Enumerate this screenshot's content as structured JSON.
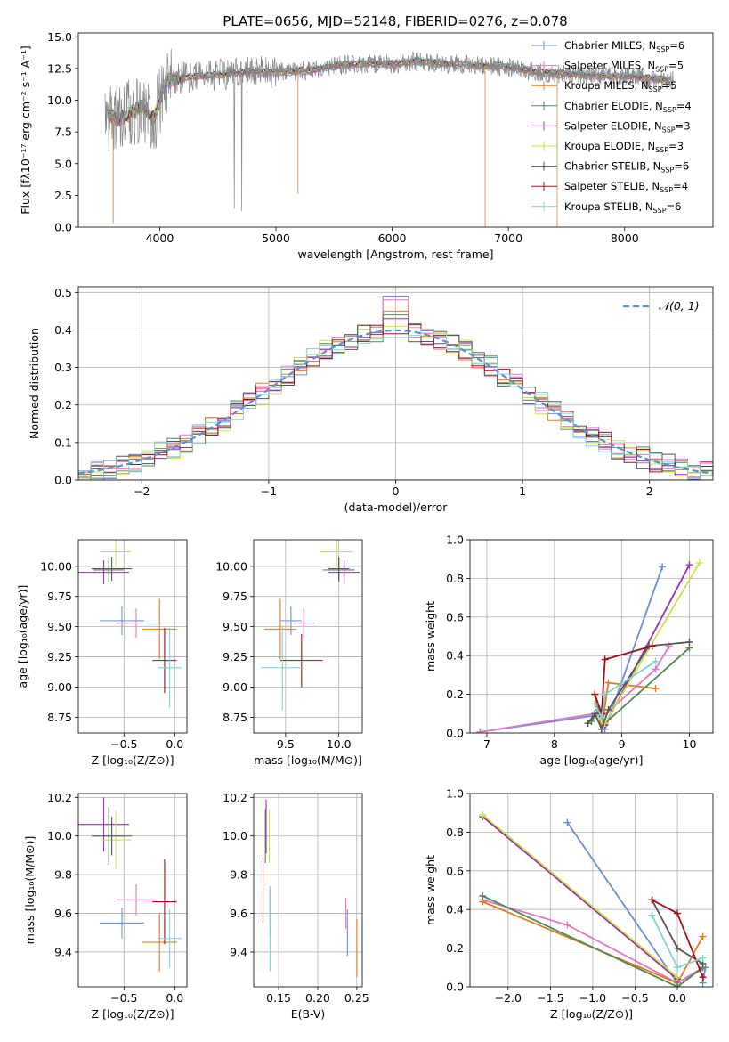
{
  "figure_title": "PLATE=0656, MJD=52148, FIBERID=0276, z=0.078",
  "series_legend": [
    {
      "label": "Chabrier MILES, N",
      "sub": "SSP",
      "suffix": "=6",
      "color": "#6a8fd8"
    },
    {
      "label": "Salpeter MILES, N",
      "sub": "SSP",
      "suffix": "=5",
      "color": "#e377c2"
    },
    {
      "label": "Kroupa MILES, N",
      "sub": "SSP",
      "suffix": "=5",
      "color": "#e07b20"
    },
    {
      "label": "Chabrier ELODIE, N",
      "sub": "SSP",
      "suffix": "=4",
      "color": "#4f8a52"
    },
    {
      "label": "Salpeter ELODIE, N",
      "sub": "SSP",
      "suffix": "=3",
      "color": "#9b2fae"
    },
    {
      "label": "Kroupa ELODIE, N",
      "sub": "SSP",
      "suffix": "=3",
      "color": "#c9e44a"
    },
    {
      "label": "Chabrier STELIB, N",
      "sub": "SSP",
      "suffix": "=6",
      "color": "#555555"
    },
    {
      "label": "Salpeter STELIB, N",
      "sub": "SSP",
      "suffix": "=4",
      "color": "#a0101a"
    },
    {
      "label": "Kroupa STELIB, N",
      "sub": "SSP",
      "suffix": "=6",
      "color": "#7fd3d6"
    }
  ],
  "chart_data": [
    {
      "id": "spectrum",
      "type": "line",
      "xlabel": "wavelength [Angstrom, rest frame]",
      "ylabel": "Flux [fλ10⁻¹⁷ erg cm⁻² s⁻¹ A⁻¹]",
      "xlim": [
        3300,
        8760
      ],
      "ylim": [
        0,
        15.3
      ],
      "xticks": [
        4000,
        5000,
        6000,
        7000,
        8000
      ],
      "yticks": [
        0.0,
        2.5,
        5.0,
        7.5,
        10.0,
        12.5,
        15.0
      ],
      "data_color": "#888888",
      "continuum_x": [
        3550,
        3650,
        3750,
        3850,
        3950,
        4050,
        4200,
        4400,
        4600,
        4800,
        5000,
        5200,
        5400,
        5600,
        5800,
        6000,
        6200,
        6400,
        6600,
        6800,
        7000,
        7200,
        7400,
        7600,
        7800,
        8000,
        8200,
        8400
      ],
      "continuum_y": [
        8.8,
        8.5,
        9.0,
        9.6,
        8.5,
        11.5,
        11.8,
        11.9,
        12.1,
        12.3,
        12.2,
        12.3,
        12.5,
        12.8,
        12.9,
        12.8,
        13.1,
        12.9,
        12.8,
        12.7,
        12.6,
        12.3,
        12.1,
        12.0,
        11.9,
        11.9,
        11.7,
        11.6
      ]
    },
    {
      "id": "residuals",
      "type": "histogram",
      "xlabel": "(data-model)/error",
      "ylabel": "Normed distribution",
      "xlim": [
        -2.5,
        2.5
      ],
      "ylim": [
        0,
        0.515
      ],
      "xticks": [
        -2,
        -1,
        0,
        1,
        2
      ],
      "yticks": [
        0.0,
        0.1,
        0.2,
        0.3,
        0.4,
        0.5
      ],
      "bin_width": 0.1,
      "normal_label": "𝒩(0, 1)",
      "normal_color": "#5b8fd8",
      "peak_values": [
        0.49,
        0.48,
        0.45,
        0.44,
        0.43,
        0.41,
        0.4,
        0.39,
        0.38
      ]
    },
    {
      "id": "z-age",
      "type": "scatter-errorbar",
      "xlabel": "Z [log₁₀(Z/Z⊙)]",
      "ylabel": "age  [log₁₀(age/yr)]",
      "xlim": [
        -0.95,
        0.12
      ],
      "ylim": [
        8.62,
        10.22
      ],
      "xticks": [
        -0.5,
        0.0
      ],
      "yticks": [
        8.75,
        9.0,
        9.25,
        9.5,
        9.75,
        10.0
      ],
      "points": [
        {
          "x": -0.52,
          "y": 9.55,
          "xerr": 0.22,
          "yerr": 0.12
        },
        {
          "x": -0.38,
          "y": 9.53,
          "xerr": 0.2,
          "yerr": 0.12
        },
        {
          "x": -0.15,
          "y": 9.48,
          "xerr": 0.17,
          "yerr": 0.25
        },
        {
          "x": -0.65,
          "y": 9.97,
          "xerr": 0.15,
          "yerr": 0.1
        },
        {
          "x": -0.7,
          "y": 9.95,
          "xerr": 0.25,
          "yerr": 0.1
        },
        {
          "x": -0.58,
          "y": 10.12,
          "xerr": 0.15,
          "yerr": 0.12
        },
        {
          "x": -0.62,
          "y": 9.98,
          "xerr": 0.2,
          "yerr": 0.1
        },
        {
          "x": -0.1,
          "y": 9.22,
          "xerr": 0.12,
          "yerr": 0.27
        },
        {
          "x": -0.05,
          "y": 9.16,
          "xerr": 0.12,
          "yerr": 0.33
        }
      ]
    },
    {
      "id": "mass-age",
      "type": "scatter-errorbar",
      "xlabel": "mass [log₁₀(M/M⊙)]",
      "ylabel": "",
      "xlim": [
        9.2,
        10.22
      ],
      "ylim": [
        8.62,
        10.22
      ],
      "xticks": [
        9.5,
        10.0
      ],
      "yticks": [
        8.75,
        9.0,
        9.25,
        9.5,
        9.75,
        10.0
      ],
      "points": [
        {
          "x": 9.55,
          "y": 9.55,
          "xerr": 0.1,
          "yerr": 0.12
        },
        {
          "x": 9.67,
          "y": 9.53,
          "xerr": 0.1,
          "yerr": 0.12
        },
        {
          "x": 9.45,
          "y": 9.48,
          "xerr": 0.15,
          "yerr": 0.25
        },
        {
          "x": 10.0,
          "y": 9.97,
          "xerr": 0.15,
          "yerr": 0.1
        },
        {
          "x": 10.05,
          "y": 9.95,
          "xerr": 0.15,
          "yerr": 0.1
        },
        {
          "x": 9.98,
          "y": 10.12,
          "xerr": 0.15,
          "yerr": 0.12
        },
        {
          "x": 10.0,
          "y": 9.98,
          "xerr": 0.1,
          "yerr": 0.1
        },
        {
          "x": 9.65,
          "y": 9.22,
          "xerr": 0.2,
          "yerr": 0.22
        },
        {
          "x": 9.47,
          "y": 9.16,
          "xerr": 0.2,
          "yerr": 0.35
        }
      ]
    },
    {
      "id": "age-weight",
      "type": "line",
      "xlabel": "age  [log₁₀(age/yr)]",
      "ylabel": "mass weight",
      "xlim": [
        6.75,
        10.35
      ],
      "ylim": [
        0,
        1.0
      ],
      "xticks": [
        7,
        8,
        9,
        10
      ],
      "yticks": [
        0.0,
        0.2,
        0.4,
        0.6,
        0.8,
        1.0
      ],
      "series": [
        {
          "x": [
            6.9,
            8.6,
            8.7,
            8.75,
            9.6
          ],
          "y": [
            0.005,
            0.09,
            0.12,
            0.02,
            0.86
          ]
        },
        {
          "x": [
            6.9,
            8.6,
            8.7,
            9.5,
            9.7
          ],
          "y": [
            0.005,
            0.1,
            0.08,
            0.33,
            0.45
          ]
        },
        {
          "x": [
            8.6,
            8.7,
            8.8,
            9.5
          ],
          "y": [
            0.2,
            0.02,
            0.26,
            0.23
          ]
        },
        {
          "x": [
            8.55,
            8.65,
            8.75,
            10.0
          ],
          "y": [
            0.06,
            0.12,
            0.05,
            0.44
          ]
        },
        {
          "x": [
            8.65,
            8.75,
            10.0
          ],
          "y": [
            0.1,
            0.04,
            0.87
          ]
        },
        {
          "x": [
            8.65,
            8.75,
            10.15
          ],
          "y": [
            0.08,
            0.05,
            0.88
          ]
        },
        {
          "x": [
            8.5,
            8.6,
            8.7,
            8.8,
            9.4,
            10.0
          ],
          "y": [
            0.05,
            0.1,
            0.02,
            0.12,
            0.45,
            0.47
          ]
        },
        {
          "x": [
            8.6,
            8.7,
            8.75,
            9.45
          ],
          "y": [
            0.2,
            0.1,
            0.38,
            0.45
          ]
        },
        {
          "x": [
            8.6,
            8.7,
            8.75,
            9.5
          ],
          "y": [
            0.15,
            0.08,
            0.2,
            0.37
          ]
        }
      ]
    },
    {
      "id": "z-mass",
      "type": "scatter-errorbar",
      "xlabel": "Z [log₁₀(Z/Z⊙)]",
      "ylabel": "mass [log₁₀(M/M⊙)]",
      "xlim": [
        -0.95,
        0.12
      ],
      "ylim": [
        9.22,
        10.22
      ],
      "xticks": [
        -0.5,
        0.0
      ],
      "yticks": [
        9.4,
        9.6,
        9.8,
        10.0,
        10.2
      ],
      "points": [
        {
          "x": -0.52,
          "y": 9.55,
          "xerr": 0.22,
          "yerr": 0.08
        },
        {
          "x": -0.38,
          "y": 9.67,
          "xerr": 0.2,
          "yerr": 0.08
        },
        {
          "x": -0.15,
          "y": 9.45,
          "xerr": 0.17,
          "yerr": 0.15
        },
        {
          "x": -0.65,
          "y": 10.0,
          "xerr": 0.15,
          "yerr": 0.15
        },
        {
          "x": -0.7,
          "y": 10.06,
          "xerr": 0.25,
          "yerr": 0.14
        },
        {
          "x": -0.58,
          "y": 9.98,
          "xerr": 0.15,
          "yerr": 0.15
        },
        {
          "x": -0.62,
          "y": 10.0,
          "xerr": 0.2,
          "yerr": 0.1
        },
        {
          "x": -0.1,
          "y": 9.66,
          "xerr": 0.12,
          "yerr": 0.22
        },
        {
          "x": -0.05,
          "y": 9.47,
          "xerr": 0.12,
          "yerr": 0.15
        }
      ]
    },
    {
      "id": "ebv-mass",
      "type": "scatter-errorbar",
      "xlabel": "E(B-V)",
      "ylabel": "",
      "xlim": [
        0.118,
        0.257
      ],
      "ylim": [
        9.22,
        10.22
      ],
      "xticks": [
        0.15,
        0.2,
        0.25
      ],
      "yticks": [
        9.4,
        9.6,
        9.8,
        10.0,
        10.2
      ],
      "points": [
        {
          "x": 0.238,
          "y": 9.5,
          "xerr": 0.0,
          "yerr": 0.12
        },
        {
          "x": 0.236,
          "y": 9.6,
          "xerr": 0.0,
          "yerr": 0.08
        },
        {
          "x": 0.25,
          "y": 9.42,
          "xerr": 0.0,
          "yerr": 0.15
        },
        {
          "x": 0.133,
          "y": 10.0,
          "xerr": 0.0,
          "yerr": 0.14
        },
        {
          "x": 0.134,
          "y": 10.05,
          "xerr": 0.0,
          "yerr": 0.14
        },
        {
          "x": 0.138,
          "y": 10.0,
          "xerr": 0.0,
          "yerr": 0.14
        },
        {
          "x": 0.139,
          "y": 9.6,
          "xerr": 0.0,
          "yerr": 0.12
        },
        {
          "x": 0.13,
          "y": 9.72,
          "xerr": 0.0,
          "yerr": 0.17
        },
        {
          "x": 0.139,
          "y": 9.52,
          "xerr": 0.0,
          "yerr": 0.22
        }
      ]
    },
    {
      "id": "z-weight",
      "type": "line",
      "xlabel": "Z [log₁₀(Z/Z⊙)]",
      "ylabel": "mass weight",
      "xlim": [
        -2.45,
        0.42
      ],
      "ylim": [
        0,
        1.0
      ],
      "xticks": [
        -2.0,
        -1.5,
        -1.0,
        -0.5,
        0.0
      ],
      "yticks": [
        0.0,
        0.2,
        0.4,
        0.6,
        0.8,
        1.0
      ],
      "series": [
        {
          "x": [
            -1.3,
            0.0,
            0.33,
            0.3
          ],
          "y": [
            0.85,
            0.02,
            0.1,
            0.02
          ]
        },
        {
          "x": [
            -2.3,
            -1.3,
            0.0,
            0.3
          ],
          "y": [
            0.45,
            0.32,
            0.02,
            0.1
          ]
        },
        {
          "x": [
            -2.3,
            0.0,
            0.3
          ],
          "y": [
            0.44,
            0.02,
            0.26
          ]
        },
        {
          "x": [
            -2.3,
            0.0,
            0.3
          ],
          "y": [
            0.47,
            0.0,
            0.1
          ]
        },
        {
          "x": [
            -2.3,
            0.0
          ],
          "y": [
            0.88,
            0.04
          ]
        },
        {
          "x": [
            -2.3,
            0.0
          ],
          "y": [
            0.89,
            0.05
          ]
        },
        {
          "x": [
            -0.3,
            0.0,
            0.3
          ],
          "y": [
            0.45,
            0.2,
            0.12
          ]
        },
        {
          "x": [
            -0.3,
            0.0,
            0.3
          ],
          "y": [
            0.45,
            0.38,
            0.05
          ]
        },
        {
          "x": [
            -0.3,
            0.0,
            0.3
          ],
          "y": [
            0.37,
            0.1,
            0.15
          ]
        }
      ]
    }
  ]
}
